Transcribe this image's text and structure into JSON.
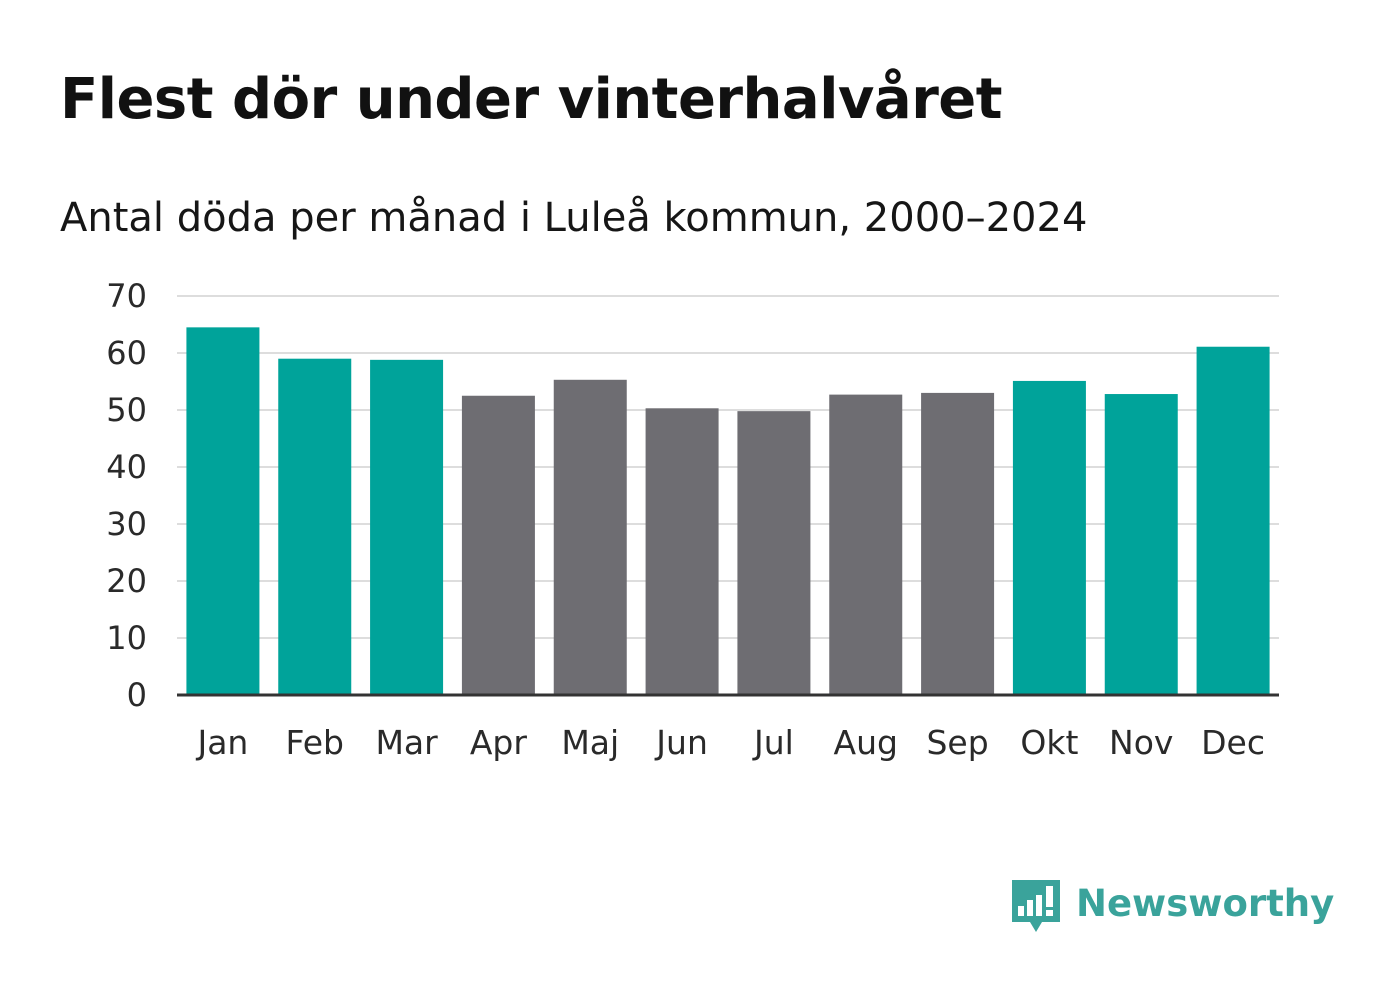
{
  "header": {
    "title": "Flest dör under vinterhalvåret",
    "subtitle": "Antal döda per månad i Luleå kommun, 2000–2024"
  },
  "colors": {
    "winter": "#00a39a",
    "summer": "#6e6d72",
    "gridline": "#dddddd",
    "axis": "#333333"
  },
  "chart_data": {
    "type": "bar",
    "title": "Flest dör under vinterhalvåret",
    "subtitle": "Antal döda per månad i Luleå kommun, 2000–2024",
    "xlabel": "",
    "ylabel": "",
    "ylim": [
      0,
      70
    ],
    "yticks": [
      0,
      10,
      20,
      30,
      40,
      50,
      60,
      70
    ],
    "grid": true,
    "categories": [
      "Jan",
      "Feb",
      "Mar",
      "Apr",
      "Maj",
      "Jun",
      "Jul",
      "Aug",
      "Sep",
      "Okt",
      "Nov",
      "Dec"
    ],
    "values": [
      64.5,
      59,
      58.8,
      52.5,
      55.3,
      50.3,
      49.8,
      52.7,
      53,
      55.1,
      52.8,
      61.1
    ],
    "groups": [
      "winter",
      "winter",
      "winter",
      "summer",
      "summer",
      "summer",
      "summer",
      "summer",
      "summer",
      "winter",
      "winter",
      "winter"
    ]
  },
  "brand": {
    "name": "Newsworthy",
    "logo_icon": "newsworthy-logo-icon"
  }
}
